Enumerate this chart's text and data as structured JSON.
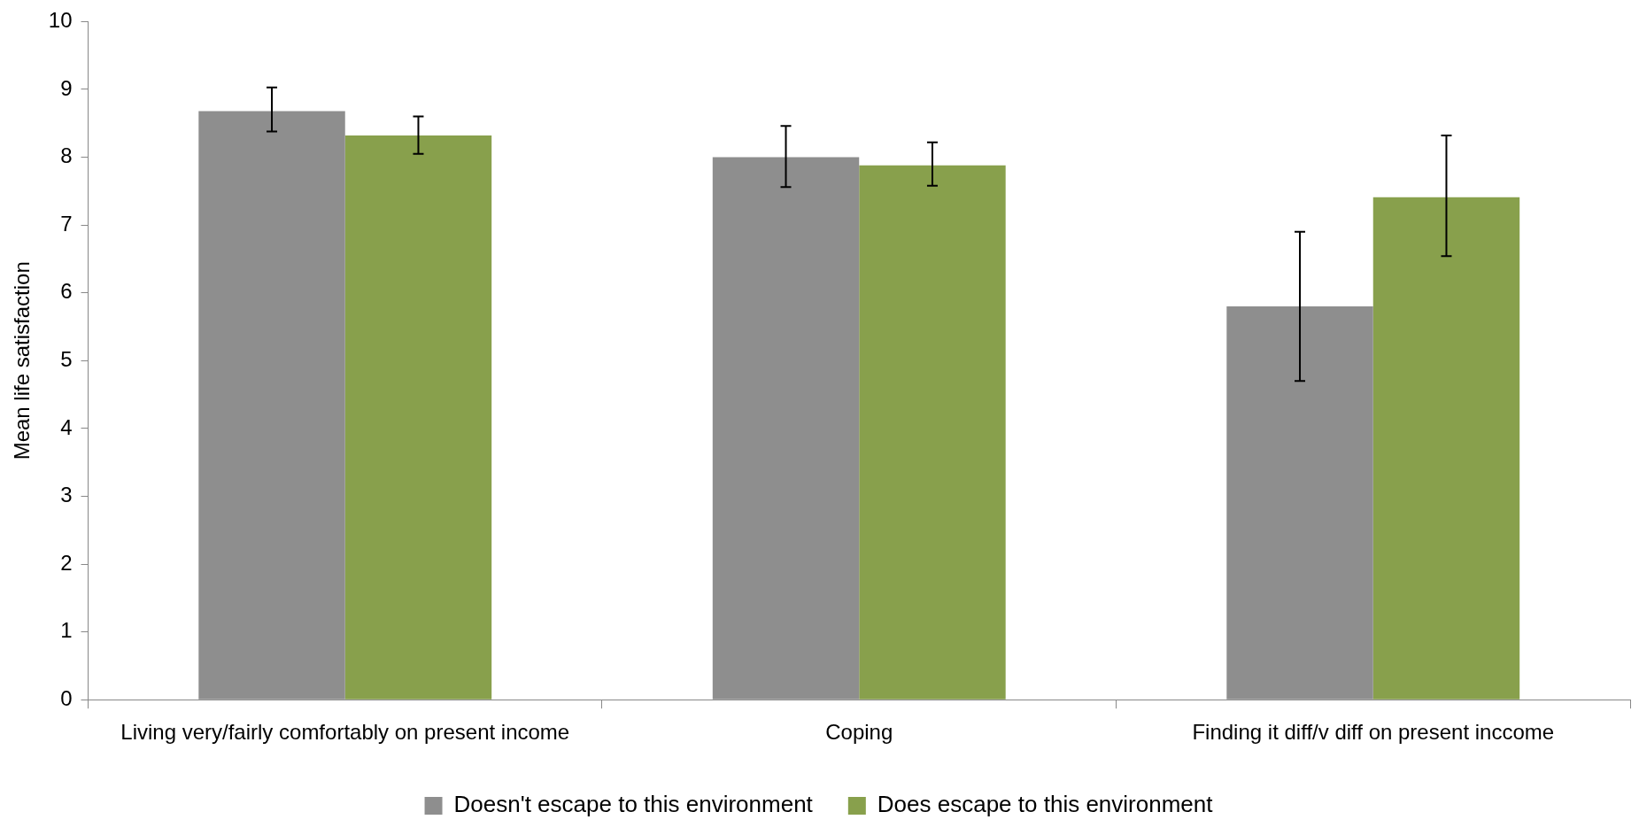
{
  "chart_data": {
    "type": "bar",
    "ylabel": "Mean life satisfaction",
    "categories": [
      "Living very/fairly comfortably on present income",
      "Coping",
      "Finding it diff/v diff on present inccome"
    ],
    "series": [
      {
        "name": "Doesn't escape to this environment",
        "color": "#8e8e8e",
        "values": [
          8.68,
          8.0,
          5.8
        ],
        "errors": [
          [
            8.38,
            9.03
          ],
          [
            7.56,
            8.46
          ],
          [
            4.7,
            6.9
          ]
        ]
      },
      {
        "name": "Does escape to this environment",
        "color": "#88a04c",
        "values": [
          8.32,
          7.88,
          7.41
        ],
        "errors": [
          [
            8.05,
            8.6
          ],
          [
            7.58,
            8.22
          ],
          [
            6.54,
            8.32
          ]
        ]
      }
    ],
    "ylim": [
      0,
      10
    ],
    "yticks": [
      0,
      1,
      2,
      3,
      4,
      5,
      6,
      7,
      8,
      9,
      10
    ],
    "grid": false,
    "legend": "bottom"
  }
}
